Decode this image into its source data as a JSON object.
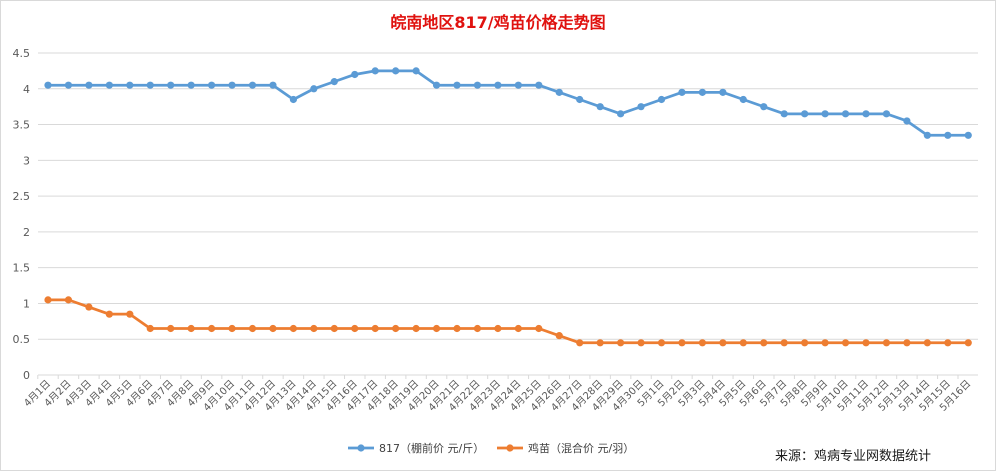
{
  "chart_data": {
    "type": "line",
    "title": "皖南地区817/鸡苗价格走势图",
    "source": "来源：鸡病专业网数据统计",
    "ylim": [
      0,
      4.5
    ],
    "yticks": [
      "0",
      "0.5",
      "1",
      "1.5",
      "2",
      "2.5",
      "3",
      "3.5",
      "4",
      "4.5"
    ],
    "grid": true,
    "legend_position": "bottom",
    "categories": [
      "4月1日",
      "4月2日",
      "4月3日",
      "4月4日",
      "4月5日",
      "4月6日",
      "4月7日",
      "4月8日",
      "4月9日",
      "4月10日",
      "4月11日",
      "4月12日",
      "4月13日",
      "4月14日",
      "4月15日",
      "4月16日",
      "4月17日",
      "4月18日",
      "4月19日",
      "4月20日",
      "4月21日",
      "4月22日",
      "4月23日",
      "4月24日",
      "4月25日",
      "4月26日",
      "4月27日",
      "4月28日",
      "4月29日",
      "4月30日",
      "5月1日",
      "5月2日",
      "5月3日",
      "5月4日",
      "5月5日",
      "5月6日",
      "5月7日",
      "5月8日",
      "5月9日",
      "5月10日",
      "5月11日",
      "5月12日",
      "5月13日",
      "5月14日",
      "5月15日",
      "5月16日"
    ],
    "series": [
      {
        "name": "817（棚前价 元/斤）",
        "color": "#5b9bd5",
        "values": [
          4.05,
          4.05,
          4.05,
          4.05,
          4.05,
          4.05,
          4.05,
          4.05,
          4.05,
          4.05,
          4.05,
          4.05,
          3.85,
          4.0,
          4.1,
          4.2,
          4.25,
          4.25,
          4.25,
          4.05,
          4.05,
          4.05,
          4.05,
          4.05,
          4.05,
          3.95,
          3.85,
          3.75,
          3.65,
          3.75,
          3.85,
          3.95,
          3.95,
          3.95,
          3.85,
          3.75,
          3.65,
          3.65,
          3.65,
          3.65,
          3.65,
          3.65,
          3.55,
          3.35,
          3.35,
          3.35
        ]
      },
      {
        "name": "鸡苗（混合价 元/羽）",
        "color": "#ed7d31",
        "values": [
          1.05,
          1.05,
          0.95,
          0.85,
          0.85,
          0.65,
          0.65,
          0.65,
          0.65,
          0.65,
          0.65,
          0.65,
          0.65,
          0.65,
          0.65,
          0.65,
          0.65,
          0.65,
          0.65,
          0.65,
          0.65,
          0.65,
          0.65,
          0.65,
          0.65,
          0.55,
          0.45,
          0.45,
          0.45,
          0.45,
          0.45,
          0.45,
          0.45,
          0.45,
          0.45,
          0.45,
          0.45,
          0.45,
          0.45,
          0.45,
          0.45,
          0.45,
          0.45,
          0.45,
          0.45,
          0.45
        ]
      }
    ]
  }
}
